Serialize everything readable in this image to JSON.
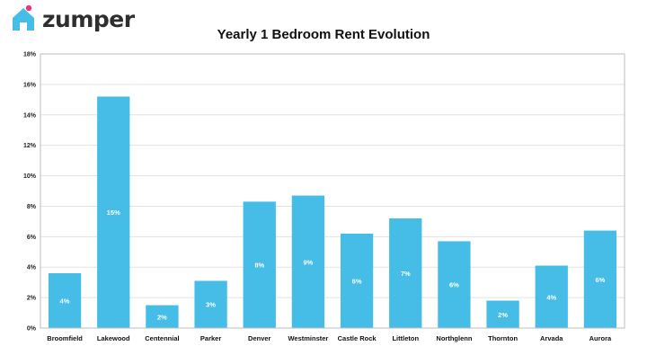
{
  "brand": {
    "logo_text": "zumper",
    "icon": "house-icon",
    "accent": "#e8357c"
  },
  "chart_data": {
    "type": "bar",
    "title": "Yearly 1 Bedroom Rent Evolution",
    "xlabel": "",
    "ylabel": "",
    "ylim": [
      0,
      18
    ],
    "y_ticks": [
      "0%",
      "2%",
      "4%",
      "6%",
      "8%",
      "10%",
      "12%",
      "14%",
      "16%",
      "18%"
    ],
    "grid": true,
    "categories": [
      "Broomfield",
      "Lakewood",
      "Centennial",
      "Parker",
      "Denver",
      "Westminster",
      "Castle Rock",
      "Littleton",
      "Northglenn",
      "Thornton",
      "Arvada",
      "Aurora"
    ],
    "values": [
      3.6,
      15.2,
      1.5,
      3.1,
      8.3,
      8.7,
      6.2,
      7.2,
      5.7,
      1.8,
      4.1,
      6.4
    ],
    "data_labels": [
      "4%",
      "15%",
      "2%",
      "3%",
      "8%",
      "9%",
      "6%",
      "7%",
      "6%",
      "2%",
      "4%",
      "6%"
    ],
    "bar_color": "#45bde6",
    "grid_color": "#e3e3e3"
  }
}
